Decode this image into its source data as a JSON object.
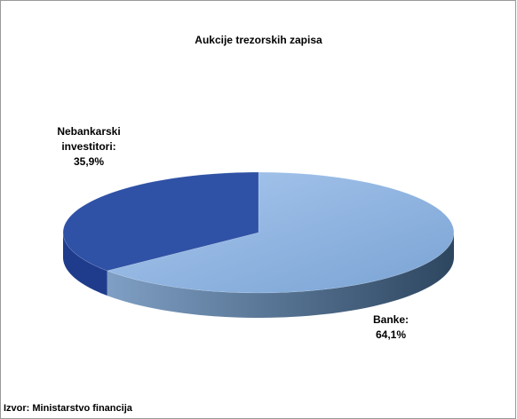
{
  "chart_data": {
    "type": "pie3d",
    "title": "Aukcije trezorskih zapisa",
    "categories": [
      "Banke:",
      "Nebankarski investitori:"
    ],
    "values": [
      64.1,
      35.9
    ],
    "value_labels": [
      "64,1%",
      "35,9%"
    ],
    "colors": [
      "#8db3e2",
      "#2f52a6"
    ],
    "side_colors": [
      "#3d5f80",
      "#1f3c8c"
    ],
    "source": "Izvor: Ministarstvo financija"
  }
}
